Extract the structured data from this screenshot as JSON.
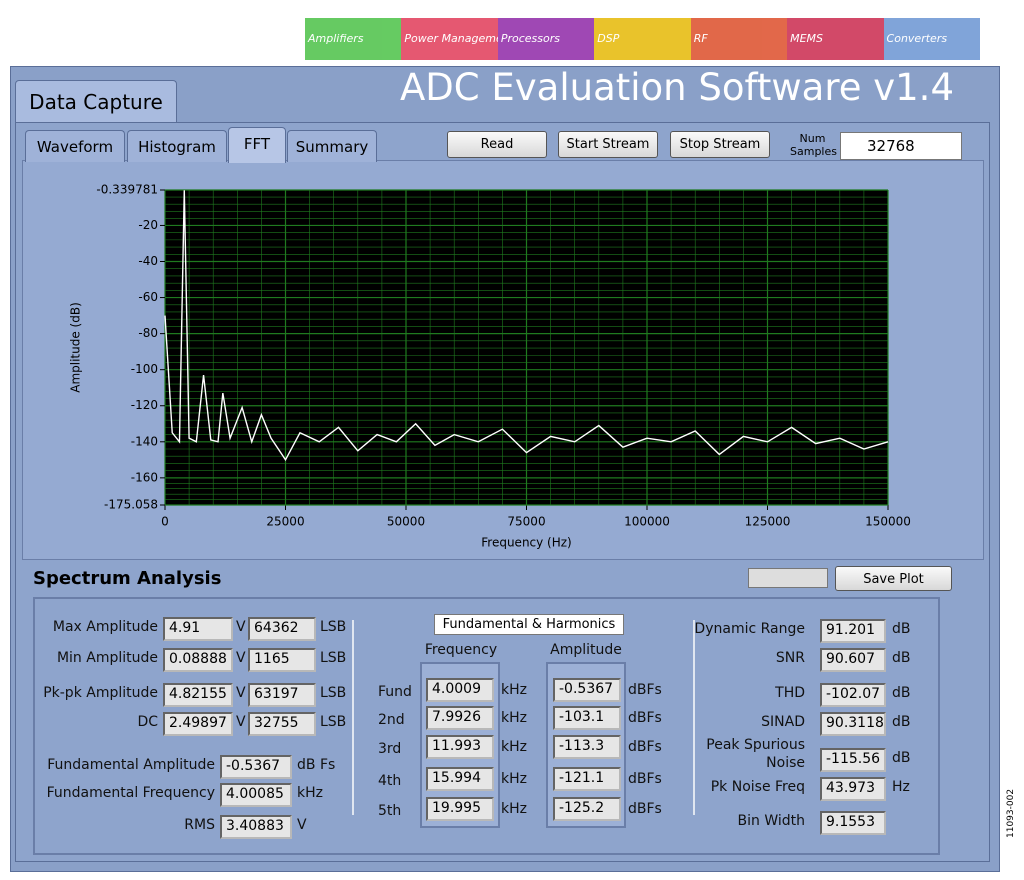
{
  "app": {
    "title": "ADC Evaluation Software v1.4",
    "main_tab": "Data Capture",
    "banner": [
      "Amplifiers",
      "Power Management",
      "Processors",
      "DSP",
      "RF",
      "MEMS",
      "Converters"
    ],
    "tabs": [
      "Waveform",
      "Histogram",
      "FFT",
      "Summary"
    ],
    "buttons": [
      "Read",
      "Start Stream",
      "Stop Stream"
    ],
    "num_samples_label": "Num Samples",
    "num_samples": "32768",
    "figure_id": "11093-002"
  },
  "chart_data": {
    "type": "line",
    "xlabel": "Frequency (Hz)",
    "ylabel": "Amplitude (dB)",
    "x": [
      0,
      1500,
      3000,
      4000,
      5000,
      6500,
      8000,
      9500,
      11000,
      12000,
      13500,
      16000,
      18000,
      20000,
      22000,
      25000,
      28000,
      32000,
      36000,
      40000,
      44000,
      48000,
      52000,
      56000,
      60000,
      65000,
      70000,
      75000,
      80000,
      85000,
      90000,
      95000,
      100000,
      105000,
      110000,
      115000,
      120000,
      125000,
      130000,
      135000,
      140000,
      145000,
      150000
    ],
    "series": [
      {
        "color": "#ffffff",
        "values": [
          -70,
          -135,
          -140,
          -0.5,
          -138,
          -140,
          -103,
          -139,
          -140,
          -113,
          -138,
          -121,
          -140,
          -125,
          -138,
          -150,
          -135,
          -140,
          -132,
          -145,
          -136,
          -140,
          -130,
          -142,
          -136,
          -140,
          -133,
          -146,
          -137,
          -140,
          -131,
          -143,
          -138,
          -140,
          -134,
          -147,
          -137,
          -140,
          -132,
          -141,
          -138,
          -144,
          -140
        ]
      }
    ],
    "xlim": [
      0,
      150000
    ],
    "ylim": [
      -175.058,
      -0.339781
    ],
    "xticks": [
      0,
      25000,
      50000,
      75000,
      100000,
      125000,
      150000
    ],
    "yticks": [
      -0.339781,
      -20,
      -40,
      -60,
      -80,
      -100,
      -120,
      -140,
      -160,
      -175.058
    ],
    "grid": true,
    "grid_color": "#1f7a1f",
    "background": "#000000"
  },
  "spectrum": {
    "title": "Spectrum Analysis",
    "save": "Save Plot",
    "levels": [
      {
        "label": "Max Amplitude",
        "value": "4.91",
        "unit": "V",
        "lsb": "64362",
        "lsb_unit": "LSB"
      },
      {
        "label": "Min Amplitude",
        "value": "0.08888",
        "unit": "V",
        "lsb": "1165",
        "lsb_unit": "LSB"
      },
      {
        "label": "Pk-pk Amplitude",
        "value": "4.82155",
        "unit": "V",
        "lsb": "63197",
        "lsb_unit": "LSB"
      },
      {
        "label": "DC",
        "value": "2.49897",
        "unit": "V",
        "lsb": "32755",
        "lsb_unit": "LSB"
      }
    ],
    "fundamental": [
      {
        "label": "Fundamental Amplitude",
        "value": "-0.5367",
        "unit": "dB Fs"
      },
      {
        "label": "Fundamental Frequency",
        "value": "4.00085",
        "unit": "kHz"
      },
      {
        "label": "RMS",
        "value": "3.40883",
        "unit": "V"
      }
    ],
    "harmonics": {
      "title": "Fundamental & Harmonics",
      "headers": [
        "Frequency",
        "Amplitude"
      ],
      "rows": [
        {
          "label": "Fund",
          "freq": "4.0009",
          "freq_unit": "kHz",
          "amp": "-0.5367",
          "amp_unit": "dBFs"
        },
        {
          "label": "2nd",
          "freq": "7.9926",
          "freq_unit": "kHz",
          "amp": "-103.1",
          "amp_unit": "dBFs"
        },
        {
          "label": "3rd",
          "freq": "11.993",
          "freq_unit": "kHz",
          "amp": "-113.3",
          "amp_unit": "dBFs"
        },
        {
          "label": "4th",
          "freq": "15.994",
          "freq_unit": "kHz",
          "amp": "-121.1",
          "amp_unit": "dBFs"
        },
        {
          "label": "5th",
          "freq": "19.995",
          "freq_unit": "kHz",
          "amp": "-125.2",
          "amp_unit": "dBFs"
        }
      ]
    },
    "metrics": [
      {
        "label": "Dynamic Range",
        "value": "91.201",
        "unit": "dB"
      },
      {
        "label": "SNR",
        "value": "90.607",
        "unit": "dB"
      },
      {
        "label": "THD",
        "value": "-102.07",
        "unit": "dB"
      },
      {
        "label": "SINAD",
        "value": "90.3118",
        "unit": "dB"
      },
      {
        "label": "Peak Spurious Noise",
        "value": "-115.56",
        "unit": "dB"
      },
      {
        "label": "Pk Noise Freq",
        "value": "43.973",
        "unit": "Hz"
      },
      {
        "label": "Bin Width",
        "value": "9.1553"
      }
    ]
  }
}
